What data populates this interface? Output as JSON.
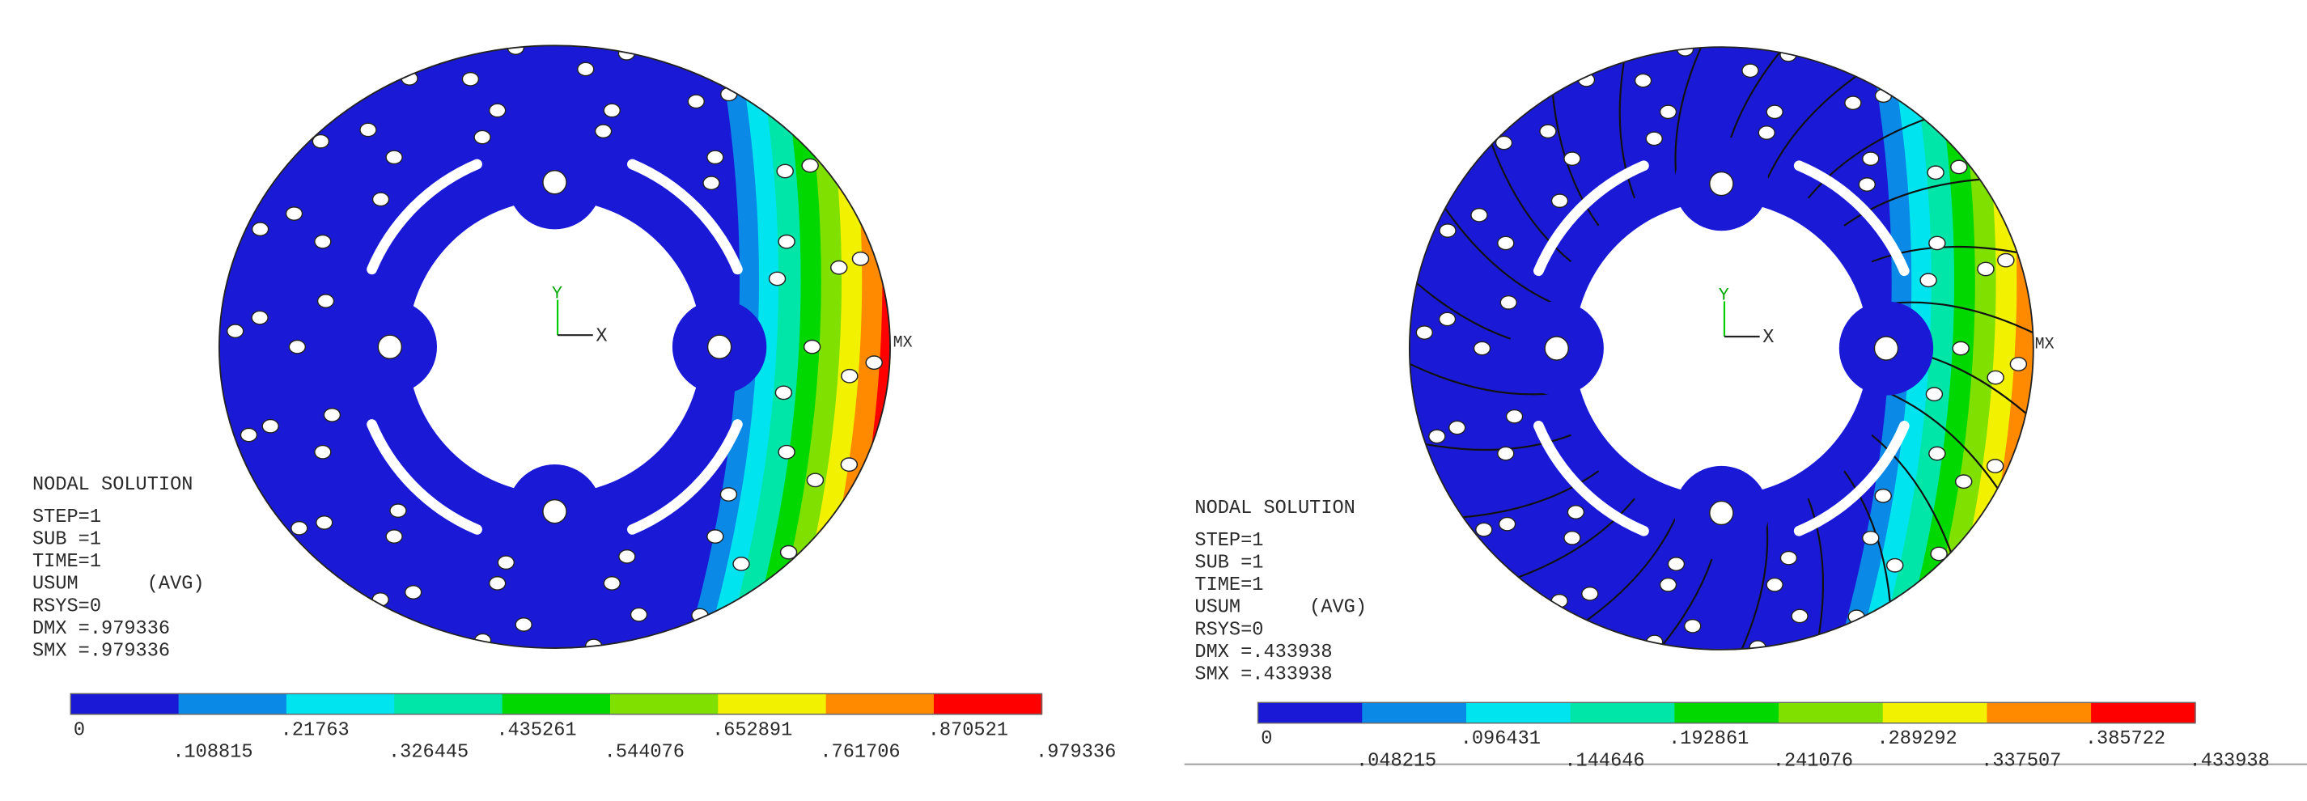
{
  "panels": [
    {
      "title": "NODAL SOLUTION",
      "info": [
        "STEP=1",
        "SUB =1",
        "TIME=1",
        "USUM      (AVG)",
        "RSYS=0",
        "DMX =.979336",
        "SMX =.979336"
      ],
      "axis": {
        "x": "X",
        "y": "Y"
      },
      "max_marker": "MX",
      "colorbar": {
        "colors": [
          "#1a1ad6",
          "#0a8ae6",
          "#00e4f0",
          "#00e6a8",
          "#00d800",
          "#80e000",
          "#f2f200",
          "#ff8a00",
          "#ff0000"
        ],
        "labels": [
          "0",
          ".108815",
          ".21763",
          ".326445",
          ".435261",
          ".544076",
          ".652891",
          ".761706",
          ".870521",
          ".979336"
        ]
      }
    },
    {
      "title": "NODAL SOLUTION",
      "info": [
        "STEP=1",
        "SUB =1",
        "TIME=1",
        "USUM      (AVG)",
        "RSYS=0",
        "DMX =.433938",
        "SMX =.433938"
      ],
      "axis": {
        "x": "X",
        "y": "Y"
      },
      "max_marker": "MX",
      "colorbar": {
        "colors": [
          "#1a1ad6",
          "#0a8ae6",
          "#00e4f0",
          "#00e6a8",
          "#00d800",
          "#80e000",
          "#f2f200",
          "#ff8a00",
          "#ff0000"
        ],
        "labels": [
          "0",
          ".048215",
          ".096431",
          ".144646",
          ".192861",
          ".241076",
          ".289292",
          ".337507",
          ".385722",
          ".433938"
        ]
      }
    }
  ]
}
